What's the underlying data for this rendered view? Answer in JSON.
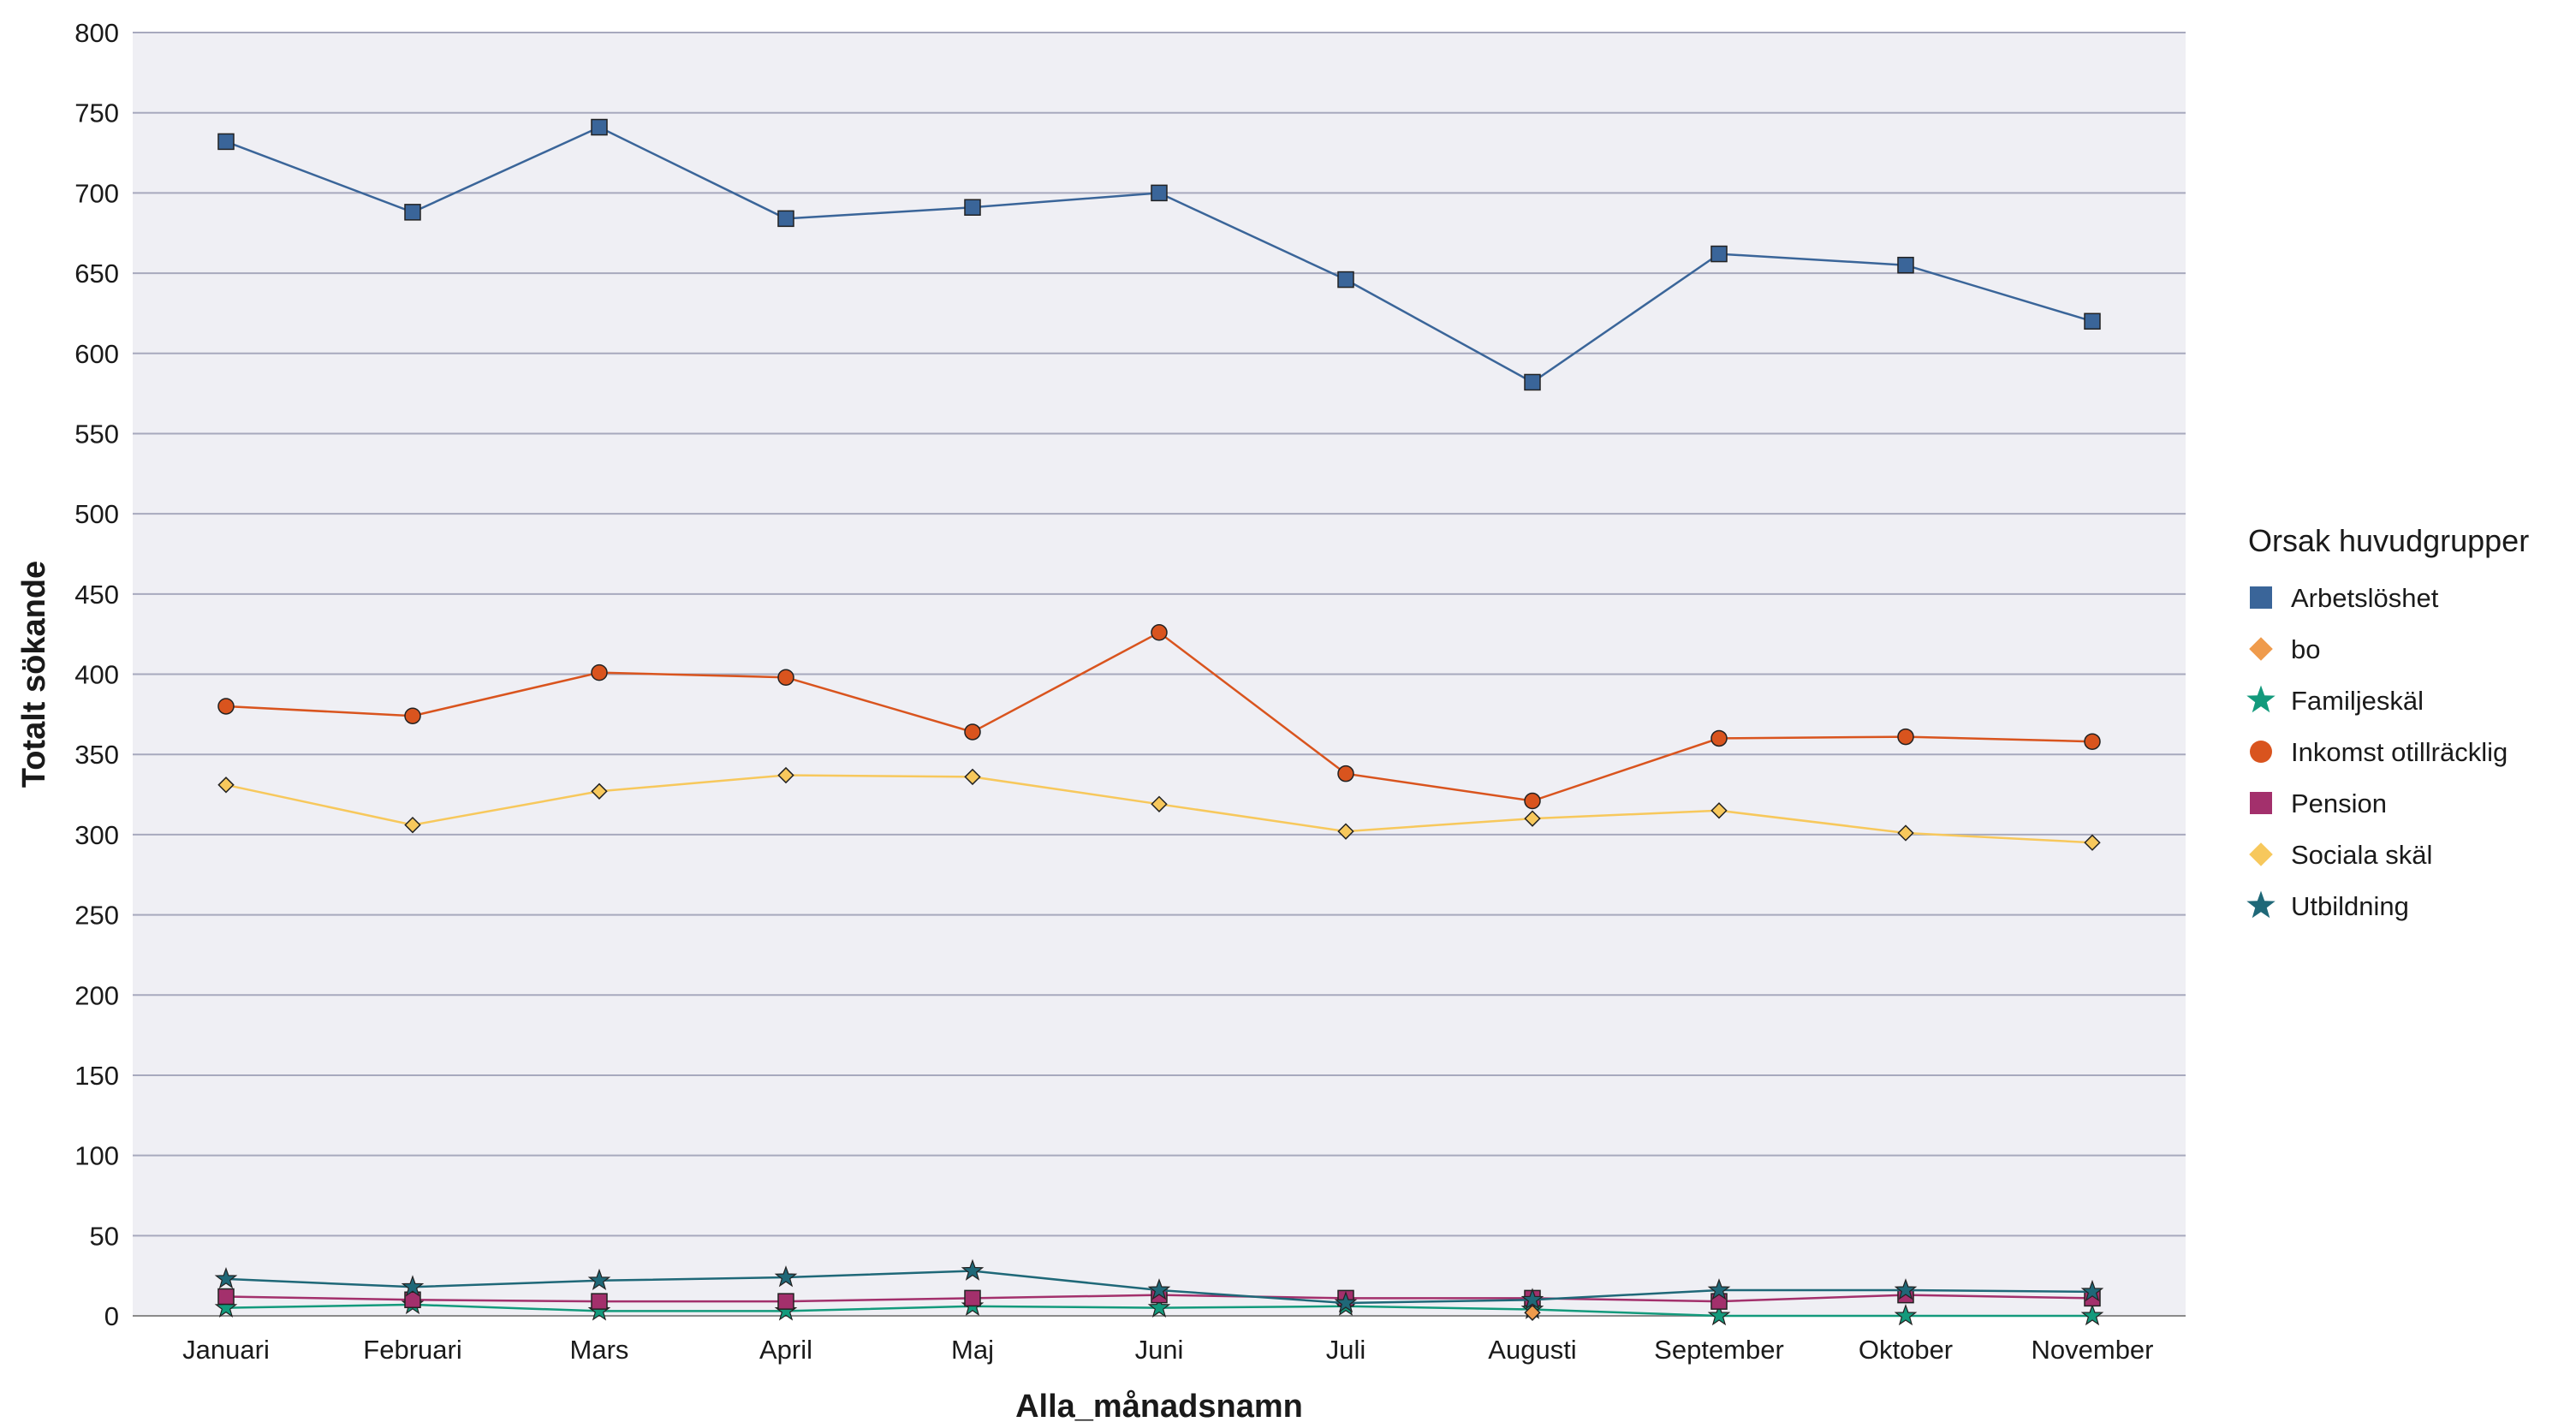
{
  "chart_data": {
    "type": "line",
    "title": "",
    "xlabel": "Alla_månadsnamn",
    "ylabel": "Totalt sökande",
    "ylim": [
      0,
      800
    ],
    "yticks": [
      0,
      50,
      100,
      150,
      200,
      250,
      300,
      350,
      400,
      450,
      500,
      550,
      600,
      650,
      700,
      750,
      800
    ],
    "grid": true,
    "legend_placement": "right",
    "legend_title": "Orsak huvudgrupper",
    "plot_background": "#efeff4",
    "gridline_color": "#a7a9bd",
    "categories": [
      "Januari",
      "Februari",
      "Mars",
      "April",
      "Maj",
      "Juni",
      "Juli",
      "Augusti",
      "September",
      "Oktober",
      "November"
    ],
    "series": [
      {
        "name": "Arbetslöshet",
        "color": "#3a6599",
        "marker": "square",
        "values": [
          732,
          688,
          741,
          684,
          691,
          700,
          646,
          582,
          662,
          655,
          620
        ]
      },
      {
        "name": "bo",
        "color": "#ef9b4c",
        "marker": "diamond",
        "values": [
          null,
          null,
          null,
          null,
          null,
          null,
          null,
          2,
          null,
          null,
          null
        ]
      },
      {
        "name": "Familjeskäl",
        "color": "#139a7c",
        "marker": "star",
        "values": [
          5,
          7,
          3,
          3,
          6,
          5,
          6,
          4,
          0,
          0,
          0
        ]
      },
      {
        "name": "Inkomst otillräcklig",
        "color": "#d9541e",
        "marker": "circle",
        "values": [
          380,
          374,
          401,
          398,
          364,
          426,
          338,
          321,
          360,
          361,
          358
        ]
      },
      {
        "name": "Pension",
        "color": "#a3306c",
        "marker": "square",
        "values": [
          12,
          10,
          9,
          9,
          11,
          13,
          11,
          11,
          9,
          13,
          11
        ]
      },
      {
        "name": "Sociala skäl",
        "color": "#f7c85c",
        "marker": "diamond",
        "values": [
          331,
          306,
          327,
          337,
          336,
          319,
          302,
          310,
          315,
          301,
          295
        ]
      },
      {
        "name": "Utbildning",
        "color": "#1f6878",
        "marker": "star",
        "values": [
          23,
          18,
          22,
          24,
          28,
          16,
          8,
          10,
          16,
          16,
          15
        ]
      }
    ]
  }
}
